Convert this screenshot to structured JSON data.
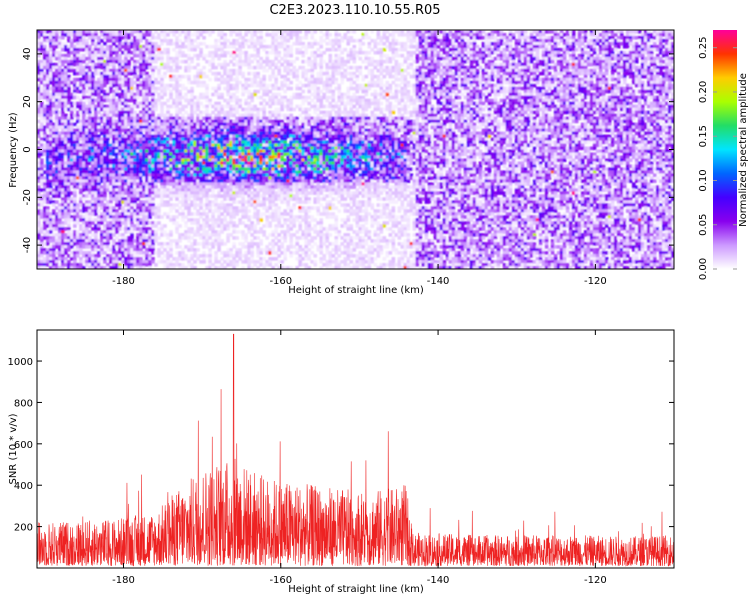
{
  "title": "C2E3.2023.110.10.55.R05",
  "colors": {
    "snr_line": "#ee2222",
    "colormap": [
      "#ffffff",
      "#cc99ff",
      "#8800ee",
      "#4400ff",
      "#0066ff",
      "#00e5ff",
      "#22dd66",
      "#aaff00",
      "#ffcc00",
      "#ff3300",
      "#ff0099"
    ]
  },
  "chart_data": [
    {
      "type": "heatmap",
      "xlabel": "Height of straight line (km)",
      "ylabel": "Frequency (Hz)",
      "xlim": [
        -191,
        -110
      ],
      "ylim": [
        -50,
        50
      ],
      "xticks": [
        -180,
        -160,
        -140,
        -120
      ],
      "yticks": [
        -40,
        -20,
        0,
        20,
        40
      ],
      "grid": false,
      "colorbar": {
        "label": "Normalized spectral amplitude",
        "range": [
          0.0,
          0.27
        ],
        "ticks": [
          "0.00",
          "0.05",
          "0.10",
          "0.15",
          "0.20",
          "0.25"
        ]
      },
      "signal_band": {
        "x_range": [
          -190,
          -144
        ],
        "freq_center": -3,
        "freq_halfwidth": 10,
        "peak_amplitude": 0.27,
        "peak_at": [
          -164,
          0
        ]
      },
      "background": {
        "sparse_region_x": [
          -176,
          -143
        ],
        "sparse_amplitude": 0.01,
        "dense_amplitude": 0.04
      }
    },
    {
      "type": "line",
      "xlabel": "Height of straight line (km)",
      "ylabel": "SNR (10 * v/v)",
      "xlim": [
        -191,
        -110
      ],
      "ylim": [
        0,
        1150
      ],
      "xticks": [
        -180,
        -160,
        -140,
        -120
      ],
      "yticks": [
        200,
        400,
        600,
        800,
        1000
      ],
      "grid": false,
      "series": [
        {
          "profile_x": [
            -191,
            -182,
            -176,
            -173,
            -170,
            -166,
            -163,
            -160,
            -155,
            -150,
            -146,
            -144,
            -143.5,
            -135,
            -125,
            -115,
            -110
          ],
          "profile_y": [
            170,
            180,
            210,
            300,
            380,
            420,
            360,
            330,
            310,
            290,
            300,
            320,
            130,
            120,
            120,
            115,
            120
          ],
          "peak": {
            "x": -166,
            "y": 1130
          }
        }
      ]
    }
  ]
}
